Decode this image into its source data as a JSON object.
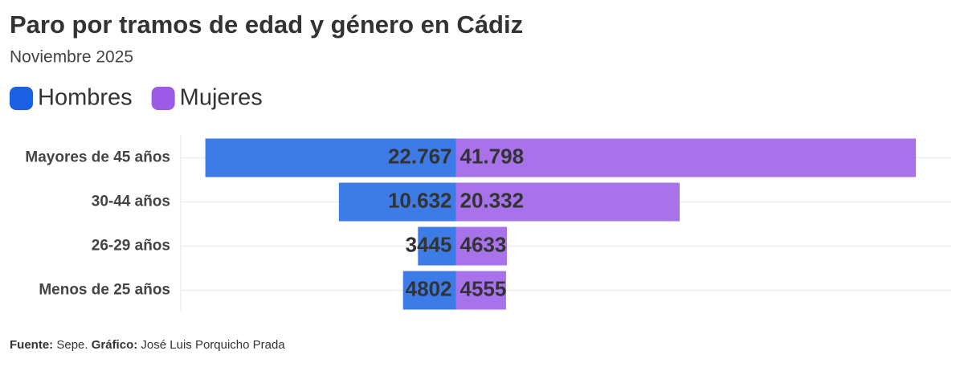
{
  "chart_data": {
    "type": "diverging_bar",
    "title": "Paro por tramos de edad y género en Cádiz",
    "subtitle": "Noviembre 2025",
    "categories": [
      "Mayores de 45 años",
      "30-44 años",
      "26-29 años",
      "Menos de 25 años"
    ],
    "series": [
      {
        "name": "Hombres",
        "color": "#3d7be6",
        "legend_color": "#1b5fe2",
        "values": [
          22767,
          10632,
          3445,
          4802
        ],
        "value_labels": [
          "22.767",
          "10.632",
          "3445",
          "4802"
        ]
      },
      {
        "name": "Mujeres",
        "color": "#a873ea",
        "legend_color": "#9c5ae6",
        "values": [
          41798,
          20332,
          4633,
          4555
        ],
        "value_labels": [
          "41.798",
          "20.332",
          "4633",
          "4555"
        ]
      }
    ],
    "xlim": [
      -25000,
      45000
    ],
    "grid": true,
    "footer": {
      "source_label": "Fuente:",
      "source": "Sepe.",
      "credit_label": "Gráfico:",
      "credit": "José Luis Porquicho Prada"
    }
  }
}
